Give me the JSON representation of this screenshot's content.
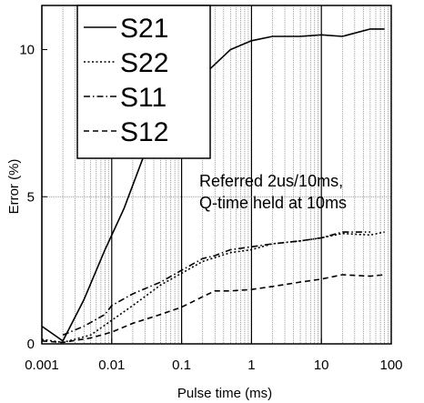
{
  "chart_data": {
    "type": "line",
    "xlabel": "Pulse time (ms)",
    "ylabel": "Error (%)",
    "x_scale": "log",
    "xlim": [
      0.001,
      100
    ],
    "ylim": [
      0,
      11.5
    ],
    "x_ticks": [
      0.001,
      0.01,
      0.1,
      1,
      10,
      100
    ],
    "x_tick_labels": [
      "0.001",
      "0.01",
      "0.1",
      "1",
      "10",
      "100"
    ],
    "y_ticks": [
      0,
      5,
      10
    ],
    "y_tick_labels": [
      "0",
      "5",
      "10"
    ],
    "grid": "vertical minor and major",
    "legend_position": "top-left",
    "annotation": [
      "Referred 2us/10ms,",
      "Q-time held at 10ms"
    ],
    "series": [
      {
        "name": "S21",
        "style": "solid",
        "x": [
          0.001,
          0.002,
          0.004,
          0.008,
          0.015,
          0.03,
          0.05,
          0.1,
          0.2,
          0.3,
          0.5,
          1,
          2,
          5,
          10,
          20,
          50,
          80
        ],
        "y": [
          0.6,
          0.1,
          1.5,
          3.2,
          4.6,
          6.5,
          7.8,
          8.7,
          9.1,
          9.5,
          10.0,
          10.3,
          10.45,
          10.45,
          10.5,
          10.45,
          10.7,
          10.7
        ]
      },
      {
        "name": "S22",
        "style": "dotted",
        "x": [
          0.001,
          0.002,
          0.005,
          0.01,
          0.02,
          0.05,
          0.1,
          0.2,
          0.5,
          1,
          2,
          5,
          10,
          20,
          50,
          80
        ],
        "y": [
          0.15,
          0.05,
          0.3,
          0.8,
          1.3,
          2.0,
          2.4,
          2.8,
          3.1,
          3.2,
          3.4,
          3.5,
          3.6,
          3.75,
          3.7,
          3.8
        ]
      },
      {
        "name": "S11",
        "style": "dash-dot",
        "x": [
          0.002,
          0.004,
          0.008,
          0.01,
          0.02,
          0.05,
          0.1,
          0.2,
          0.3,
          0.5,
          1,
          2,
          5,
          10,
          20,
          50
        ],
        "y": [
          0.3,
          0.6,
          1.0,
          1.3,
          1.7,
          2.1,
          2.5,
          2.9,
          3.0,
          3.2,
          3.3,
          3.4,
          3.5,
          3.6,
          3.8,
          3.8
        ]
      },
      {
        "name": "S12",
        "style": "dashed",
        "x": [
          0.001,
          0.002,
          0.005,
          0.01,
          0.02,
          0.05,
          0.1,
          0.2,
          0.3,
          0.5,
          1,
          2,
          5,
          10,
          20,
          50,
          80
        ],
        "y": [
          0.1,
          0.05,
          0.2,
          0.4,
          0.7,
          1.0,
          1.25,
          1.6,
          1.8,
          1.8,
          1.85,
          1.95,
          2.1,
          2.2,
          2.35,
          2.3,
          2.35
        ]
      }
    ]
  }
}
